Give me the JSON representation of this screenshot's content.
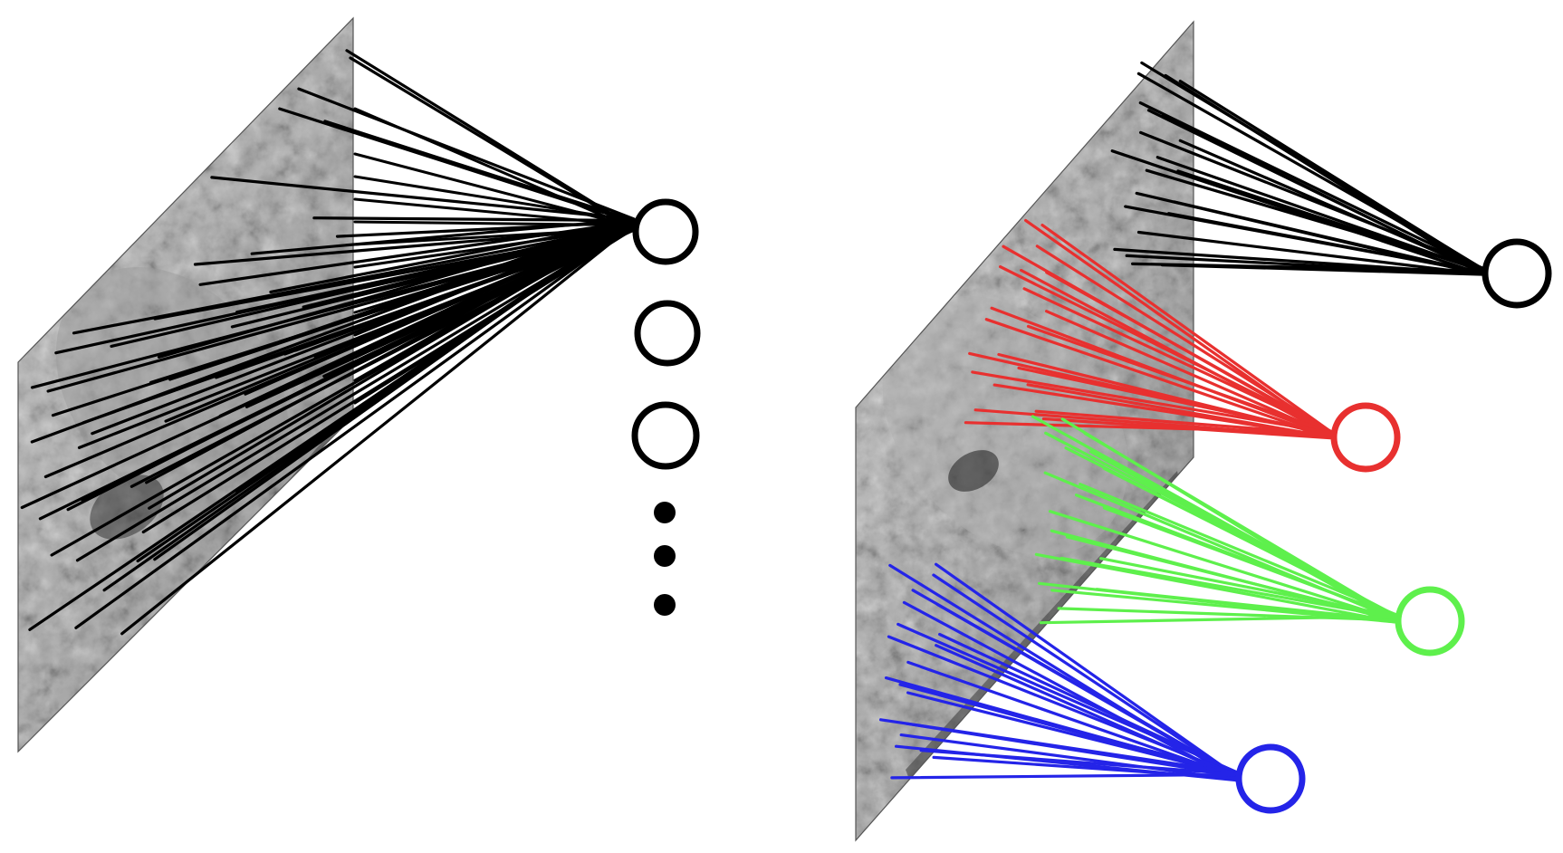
{
  "left_panel": {
    "connection_color": "#000000",
    "neuron_stroke_color": "#000000",
    "neuron_count_drawn": 3,
    "ellipsis_dots": 3,
    "connections_per_neuron": 60
  },
  "right_panel": {
    "neurons": [
      {
        "id": "black",
        "color": "#000000",
        "connections": 22
      },
      {
        "id": "red",
        "color": "#e8302f",
        "connections": 22
      },
      {
        "id": "green",
        "color": "#5ef04c",
        "connections": 22
      },
      {
        "id": "blue",
        "color": "#2424e8",
        "connections": 22
      }
    ]
  },
  "image_tones": {
    "background": "#c9c9c9",
    "dark": "#3a3a3a",
    "light": "#efefef"
  }
}
